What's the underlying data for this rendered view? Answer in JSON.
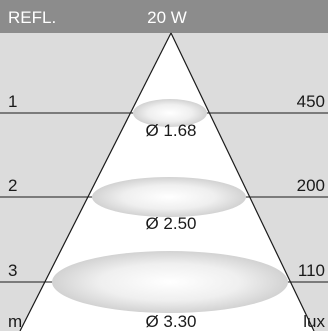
{
  "header": {
    "left_text": "REFL.",
    "center_text": "20 W",
    "bar_color": "#8c8c8c",
    "text_color": "#ffffff"
  },
  "distances": [
    "1",
    "2",
    "3"
  ],
  "lux_values": [
    "450",
    "200",
    "110"
  ],
  "diameters": [
    "Ø 1.68",
    "Ø 2.50",
    "Ø 3.30"
  ],
  "units": {
    "distance": "m",
    "illuminance": "lux"
  },
  "colors": {
    "background": "#ffffff",
    "area_fill": "#dcdcdc",
    "lines": "#1a1a1a",
    "ellipse_fill": "#e4e4e4"
  }
}
